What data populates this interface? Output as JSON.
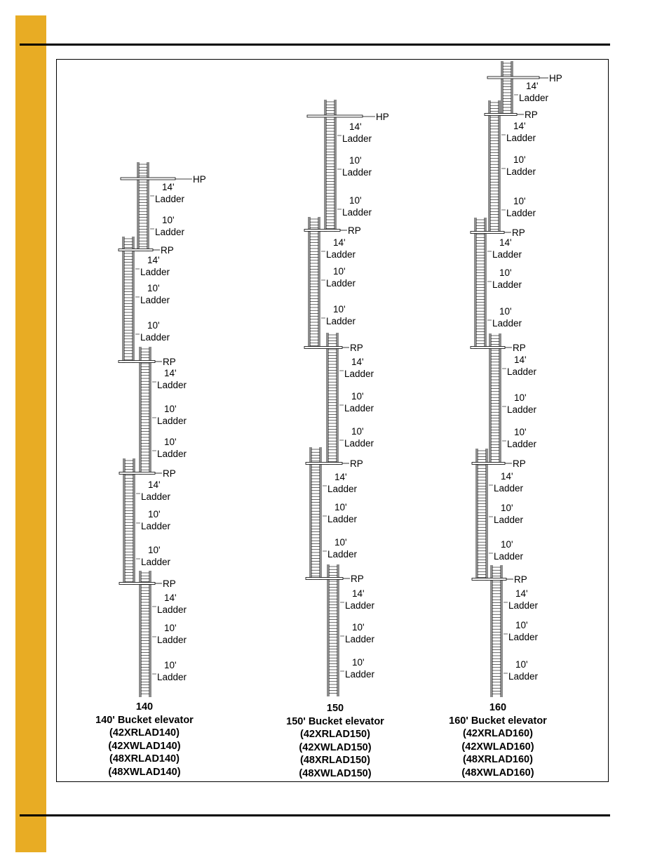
{
  "page": {
    "tab_color": "#E8AC24"
  },
  "labels": {
    "ladder": "Ladder",
    "hp": "HP",
    "rp": "RP"
  },
  "columns": [
    {
      "id": "140",
      "caption": [
        "140",
        "140' Bucket elevator",
        "(42XRLAD140)",
        "(42XWLAD140)",
        "(48XRLAD140)",
        "(48XWLAD140)"
      ],
      "sections": [
        {
          "type": "hp",
          "ladders": [
            "14'",
            "10'"
          ]
        },
        {
          "type": "rp",
          "ladders": [
            "14'",
            "10'",
            "10'"
          ]
        },
        {
          "type": "rp",
          "ladders": [
            "14'",
            "10'",
            "10'"
          ]
        },
        {
          "type": "rp",
          "ladders": [
            "14'",
            "10'",
            "10'"
          ]
        },
        {
          "type": "rp",
          "ladders": [
            "14'",
            "10'",
            "10'"
          ]
        }
      ]
    },
    {
      "id": "150",
      "caption": [
        "150",
        "150' Bucket elevator",
        "(42XRLAD150)",
        "(42XWLAD150)",
        "(48XRLAD150)",
        "(48XWLAD150)"
      ],
      "sections": [
        {
          "type": "hp",
          "ladders": [
            "14'",
            "10'",
            "10'"
          ]
        },
        {
          "type": "rp",
          "ladders": [
            "14'",
            "10'",
            "10'"
          ]
        },
        {
          "type": "rp",
          "ladders": [
            "14'",
            "10'",
            "10'"
          ]
        },
        {
          "type": "rp",
          "ladders": [
            "14'",
            "10'",
            "10'"
          ]
        },
        {
          "type": "rp",
          "ladders": [
            "14'",
            "10'",
            "10'"
          ]
        }
      ]
    },
    {
      "id": "160",
      "caption": [
        "160",
        "160' Bucket elevator",
        "(42XRLAD160)",
        "(42XWLAD160)",
        "(48XRLAD160)",
        "(48XWLAD160)"
      ],
      "sections": [
        {
          "type": "hp",
          "ladders": [
            "14'"
          ]
        },
        {
          "type": "rp",
          "ladders": [
            "14'",
            "10'",
            "10'"
          ]
        },
        {
          "type": "rp",
          "ladders": [
            "14'",
            "10'",
            "10'"
          ]
        },
        {
          "type": "rp",
          "ladders": [
            "14'",
            "10'",
            "10'"
          ]
        },
        {
          "type": "rp",
          "ladders": [
            "14'",
            "10'",
            "10'"
          ]
        },
        {
          "type": "rp",
          "ladders": [
            "14'",
            "10'",
            "10'"
          ]
        }
      ]
    }
  ]
}
